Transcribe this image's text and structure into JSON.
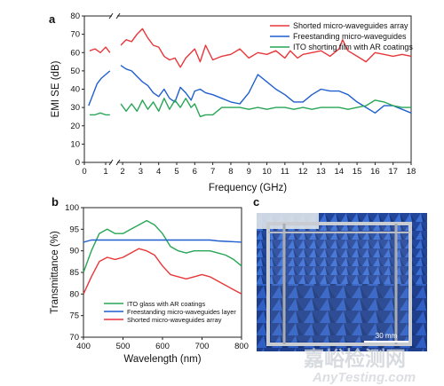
{
  "chart_data": [
    {
      "panel": "a",
      "type": "line",
      "xlabel": "Frequency (GHz)",
      "ylabel": "EMI SE (dB)",
      "xlim": [
        0,
        18
      ],
      "ylim": [
        0,
        80
      ],
      "axis_break": [
        1.25,
        1.75
      ],
      "x_ticks": [
        "0",
        "1",
        "2",
        "3",
        "4",
        "5",
        "6",
        "7",
        "8",
        "9",
        "10",
        "11",
        "12",
        "13",
        "14",
        "15",
        "16",
        "17",
        "18"
      ],
      "y_ticks": [
        "0",
        "10",
        "20",
        "30",
        "40",
        "50",
        "60",
        "70",
        "80"
      ],
      "legend_position": "top-right",
      "series": [
        {
          "name": "Shorted micro-waveguides array",
          "color": "#e8373a",
          "points": [
            [
              0.25,
              61
            ],
            [
              0.5,
              62
            ],
            [
              0.75,
              60
            ],
            [
              1.0,
              63
            ],
            [
              1.2,
              60
            ],
            [
              1.9,
              64
            ],
            [
              2.2,
              67
            ],
            [
              2.5,
              66
            ],
            [
              2.8,
              70
            ],
            [
              3.1,
              73
            ],
            [
              3.4,
              68
            ],
            [
              3.7,
              64
            ],
            [
              4.0,
              63
            ],
            [
              4.3,
              58
            ],
            [
              4.6,
              56
            ],
            [
              4.9,
              57
            ],
            [
              5.2,
              52
            ],
            [
              5.5,
              57
            ],
            [
              5.8,
              60
            ],
            [
              6.0,
              62
            ],
            [
              6.3,
              55
            ],
            [
              6.6,
              64
            ],
            [
              7.0,
              56
            ],
            [
              7.5,
              58
            ],
            [
              8.0,
              59
            ],
            [
              8.5,
              62
            ],
            [
              9.0,
              57
            ],
            [
              9.5,
              60
            ],
            [
              10.0,
              59
            ],
            [
              10.5,
              61
            ],
            [
              11.0,
              57
            ],
            [
              11.3,
              61
            ],
            [
              11.7,
              57
            ],
            [
              12.0,
              59
            ],
            [
              12.5,
              60
            ],
            [
              13.0,
              61
            ],
            [
              13.5,
              58
            ],
            [
              14.0,
              62
            ],
            [
              14.2,
              67
            ],
            [
              14.5,
              61
            ],
            [
              15.0,
              58
            ],
            [
              15.5,
              55
            ],
            [
              16.0,
              60
            ],
            [
              16.5,
              59
            ],
            [
              17.0,
              58
            ],
            [
              17.5,
              59
            ],
            [
              18.0,
              58
            ]
          ]
        },
        {
          "name": "Freestanding micro-waveguides",
          "color": "#1f5fcf",
          "points": [
            [
              0.2,
              31
            ],
            [
              0.4,
              37
            ],
            [
              0.6,
              43
            ],
            [
              0.8,
              46
            ],
            [
              1.0,
              48
            ],
            [
              1.2,
              50
            ],
            [
              1.9,
              53
            ],
            [
              2.2,
              51
            ],
            [
              2.5,
              50
            ],
            [
              2.8,
              47
            ],
            [
              3.1,
              44
            ],
            [
              3.4,
              42
            ],
            [
              3.7,
              38
            ],
            [
              4.0,
              36
            ],
            [
              4.3,
              40
            ],
            [
              4.6,
              35
            ],
            [
              4.9,
              33
            ],
            [
              5.2,
              41
            ],
            [
              5.5,
              38
            ],
            [
              5.8,
              34
            ],
            [
              6.0,
              39
            ],
            [
              6.3,
              40
            ],
            [
              6.6,
              38
            ],
            [
              7.0,
              37
            ],
            [
              7.5,
              35
            ],
            [
              8.0,
              33
            ],
            [
              8.5,
              32
            ],
            [
              9.0,
              38
            ],
            [
              9.5,
              48
            ],
            [
              10.0,
              44
            ],
            [
              10.5,
              40
            ],
            [
              11.0,
              37
            ],
            [
              11.5,
              33
            ],
            [
              12.0,
              33
            ],
            [
              12.5,
              37
            ],
            [
              13.0,
              40
            ],
            [
              13.5,
              39
            ],
            [
              14.0,
              39
            ],
            [
              14.5,
              37
            ],
            [
              15.0,
              33
            ],
            [
              15.5,
              30
            ],
            [
              16.0,
              27
            ],
            [
              16.5,
              31
            ],
            [
              17.0,
              31
            ],
            [
              17.5,
              29
            ],
            [
              18.0,
              27
            ]
          ]
        },
        {
          "name": "ITO shorting film with AR coatings",
          "color": "#27a656",
          "points": [
            [
              0.25,
              26
            ],
            [
              0.5,
              26
            ],
            [
              0.75,
              27
            ],
            [
              1.0,
              26
            ],
            [
              1.2,
              26
            ],
            [
              1.9,
              32
            ],
            [
              2.2,
              28
            ],
            [
              2.5,
              32
            ],
            [
              2.8,
              28
            ],
            [
              3.1,
              34
            ],
            [
              3.4,
              29
            ],
            [
              3.7,
              33
            ],
            [
              4.0,
              28
            ],
            [
              4.3,
              35
            ],
            [
              4.6,
              29
            ],
            [
              4.9,
              34
            ],
            [
              5.2,
              30
            ],
            [
              5.5,
              35
            ],
            [
              5.8,
              30
            ],
            [
              6.0,
              32
            ],
            [
              6.3,
              25
            ],
            [
              6.6,
              26
            ],
            [
              7.0,
              26
            ],
            [
              7.5,
              30
            ],
            [
              8.0,
              30
            ],
            [
              8.5,
              30
            ],
            [
              9.0,
              29
            ],
            [
              9.5,
              30
            ],
            [
              10.0,
              29
            ],
            [
              10.5,
              30
            ],
            [
              11.0,
              30
            ],
            [
              11.5,
              29
            ],
            [
              12.0,
              30
            ],
            [
              12.5,
              29
            ],
            [
              13.0,
              30
            ],
            [
              13.5,
              30
            ],
            [
              14.0,
              30
            ],
            [
              14.5,
              29
            ],
            [
              15.0,
              30
            ],
            [
              15.5,
              31
            ],
            [
              16.0,
              34
            ],
            [
              16.5,
              33
            ],
            [
              17.0,
              31
            ],
            [
              17.5,
              30
            ],
            [
              18.0,
              30
            ]
          ]
        }
      ]
    },
    {
      "panel": "b",
      "type": "line",
      "xlabel": "Wavelength (nm)",
      "ylabel": "Transmittance (%)",
      "xlim": [
        400,
        800
      ],
      "ylim": [
        70,
        100
      ],
      "x_ticks": [
        "400",
        "500",
        "600",
        "700",
        "800"
      ],
      "y_ticks": [
        "70",
        "75",
        "80",
        "85",
        "90",
        "95",
        "100"
      ],
      "legend_position": "bottom-center",
      "series": [
        {
          "name": "ITO glass with AR coatings",
          "color": "#27a656",
          "points": [
            [
              400,
              85
            ],
            [
              420,
              90
            ],
            [
              440,
              94
            ],
            [
              460,
              95
            ],
            [
              480,
              94
            ],
            [
              500,
              94
            ],
            [
              520,
              95
            ],
            [
              540,
              96
            ],
            [
              560,
              97
            ],
            [
              580,
              96
            ],
            [
              600,
              94
            ],
            [
              620,
              91
            ],
            [
              640,
              90
            ],
            [
              660,
              89.5
            ],
            [
              680,
              90
            ],
            [
              700,
              90
            ],
            [
              720,
              90
            ],
            [
              740,
              89.5
            ],
            [
              760,
              89
            ],
            [
              780,
              88
            ],
            [
              800,
              86.5
            ]
          ]
        },
        {
          "name": "Freestanding micro-waveguides layer",
          "color": "#1f5fcf",
          "points": [
            [
              400,
              92
            ],
            [
              420,
              92.5
            ],
            [
              440,
              92.5
            ],
            [
              460,
              92.5
            ],
            [
              480,
              92.5
            ],
            [
              500,
              92.5
            ],
            [
              520,
              92.5
            ],
            [
              540,
              92.5
            ],
            [
              560,
              92.5
            ],
            [
              580,
              92.5
            ],
            [
              600,
              92.5
            ],
            [
              620,
              92.5
            ],
            [
              640,
              92.5
            ],
            [
              660,
              92.5
            ],
            [
              680,
              92.5
            ],
            [
              700,
              92.5
            ],
            [
              720,
              92.5
            ],
            [
              740,
              92.3
            ],
            [
              760,
              92.2
            ],
            [
              780,
              92.1
            ],
            [
              800,
              92
            ]
          ]
        },
        {
          "name": "Shorted micro-waveguides array",
          "color": "#e8373a",
          "points": [
            [
              400,
              80
            ],
            [
              420,
              84
            ],
            [
              440,
              87.5
            ],
            [
              460,
              88.5
            ],
            [
              480,
              88
            ],
            [
              500,
              88.5
            ],
            [
              520,
              89.5
            ],
            [
              540,
              90.5
            ],
            [
              560,
              90
            ],
            [
              580,
              89
            ],
            [
              600,
              86.5
            ],
            [
              620,
              84.5
            ],
            [
              640,
              84
            ],
            [
              660,
              83.5
            ],
            [
              680,
              84
            ],
            [
              700,
              84.5
            ],
            [
              720,
              84
            ],
            [
              740,
              83
            ],
            [
              760,
              82
            ],
            [
              780,
              81
            ],
            [
              800,
              80
            ]
          ]
        }
      ]
    }
  ],
  "panels": {
    "a": "a",
    "b": "b",
    "c": "c"
  },
  "photo": {
    "scale_label": "30 mm"
  },
  "watermark": {
    "line1": "嘉峪检测网",
    "line2": "AnyTesting.com"
  }
}
